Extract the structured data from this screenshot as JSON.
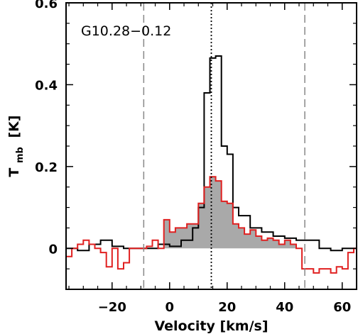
{
  "chart_data": {
    "type": "line",
    "title": "",
    "annotation": "G10.28−0.12",
    "xlabel": "Velocity [km/s]",
    "ylabel_main": "T",
    "ylabel_sub": "mb",
    "ylabel_unit": "[K]",
    "xlim": [
      -36,
      65
    ],
    "ylim": [
      -0.1,
      0.6
    ],
    "xticks": [
      -20,
      0,
      20,
      40,
      60
    ],
    "xtick_labels": [
      "−20",
      "0",
      "20",
      "40",
      "60"
    ],
    "yticks": [
      0,
      0.2,
      0.4,
      0.6
    ],
    "ytick_labels": [
      "0",
      "0.2",
      "0.4",
      "0.6"
    ],
    "grid": false,
    "vlines": {
      "dashed": [
        -9,
        47
      ],
      "dotted": [
        14.5
      ]
    },
    "series": [
      {
        "name": "",
        "color": "#000000",
        "style": "step",
        "x": [
          -36,
          -32,
          -28,
          -24,
          -20,
          -16,
          -12,
          -8,
          -4,
          0,
          4,
          8,
          10,
          12,
          14,
          16,
          18,
          20,
          22,
          24,
          28,
          32,
          36,
          40,
          44,
          48,
          52,
          56,
          60,
          65
        ],
        "y": [
          0.0,
          -0.005,
          0.01,
          0.02,
          0.005,
          0.0,
          0.0,
          0.0,
          0.01,
          0.005,
          0.02,
          0.05,
          0.1,
          0.38,
          0.465,
          0.47,
          0.25,
          0.23,
          0.1,
          0.08,
          0.05,
          0.04,
          0.03,
          0.025,
          0.02,
          0.02,
          0.0,
          -0.005,
          0.0,
          0.0
        ]
      },
      {
        "name": "",
        "color": "#e02020",
        "style": "step",
        "fill_under_between": [
          -2,
          45
        ],
        "fill_color": "#a9a9a9",
        "x": [
          -36,
          -34,
          -32,
          -30,
          -28,
          -26,
          -24,
          -22,
          -20,
          -18,
          -16,
          -14,
          -12,
          -10,
          -8,
          -6,
          -4,
          -2,
          0,
          2,
          4,
          6,
          8,
          10,
          12,
          14,
          16,
          18,
          20,
          22,
          24,
          26,
          28,
          30,
          32,
          34,
          36,
          38,
          40,
          42,
          44,
          46,
          48,
          50,
          52,
          54,
          56,
          58,
          60,
          62,
          64
        ],
        "y": [
          -0.02,
          0.0,
          0.01,
          0.02,
          0.01,
          0.0,
          -0.01,
          -0.045,
          0.0,
          -0.05,
          -0.035,
          0.0,
          0.0,
          0.0,
          0.005,
          0.02,
          0.0,
          0.07,
          0.04,
          0.05,
          0.05,
          0.06,
          0.06,
          0.11,
          0.15,
          0.175,
          0.165,
          0.115,
          0.11,
          0.06,
          0.05,
          0.035,
          0.045,
          0.03,
          0.02,
          0.025,
          0.02,
          0.01,
          0.02,
          0.01,
          0.0,
          -0.05,
          -0.05,
          -0.06,
          -0.05,
          -0.05,
          -0.06,
          -0.045,
          -0.05,
          -0.01,
          0.0
        ]
      }
    ]
  }
}
